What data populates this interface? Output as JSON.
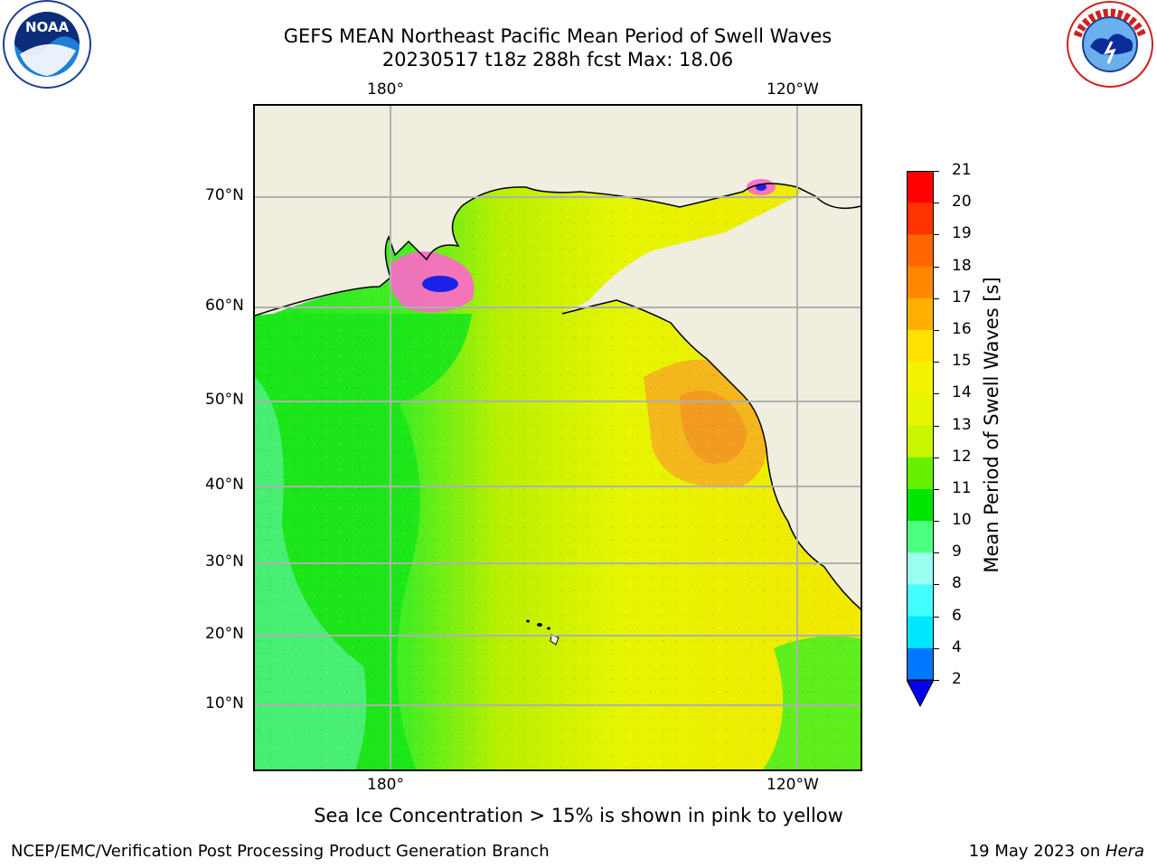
{
  "header": {
    "title_line1": "GEFS MEAN Northeast Pacific Mean Period of Swell Waves",
    "title_line2": "20230517 t18z 288h fcst   Max: 18.06"
  },
  "logos": {
    "left_logo_text": "NOAA",
    "right_logo_text": "NATIONAL WEATHER SERVICE"
  },
  "map": {
    "lon_labels_top": [
      "180°",
      "120°W"
    ],
    "lon_labels_bottom": [
      "180°",
      "120°W"
    ],
    "lat_labels": [
      "70°N",
      "60°N",
      "50°N",
      "40°N",
      "30°N",
      "20°N",
      "10°N"
    ],
    "colors": {
      "land": "#efeedf",
      "ocean_green": "#19e619",
      "ocean_lightgreen": "#4dff80",
      "ocean_yellow": "#e6f500",
      "ocean_orange": "#f0a020",
      "ice_pink": "#ff55cc",
      "grid": "#b0b0b0"
    }
  },
  "colorbar": {
    "label": "Mean Period of Swell Waves [s]",
    "ticks": [
      "21",
      "20",
      "19",
      "18",
      "17",
      "16",
      "15",
      "14",
      "13",
      "12",
      "11",
      "10",
      "9",
      "8",
      "6",
      "4",
      "2"
    ],
    "colors": [
      "#ff0000",
      "#ff3300",
      "#ff6600",
      "#ff8800",
      "#ffb000",
      "#ffe000",
      "#f4f400",
      "#e6f500",
      "#c8f500",
      "#66f000",
      "#00e600",
      "#4dff80",
      "#99ffee",
      "#44ffff",
      "#00e6ff",
      "#0077ff",
      "#0000ee"
    ]
  },
  "footer": {
    "sea_ice_note": "Sea Ice Concentration > 15% is shown in pink to yellow",
    "left": "NCEP/EMC/Verification Post Processing Product Generation Branch",
    "right_date": "19 May 2023 on ",
    "right_machine": "Hera"
  }
}
